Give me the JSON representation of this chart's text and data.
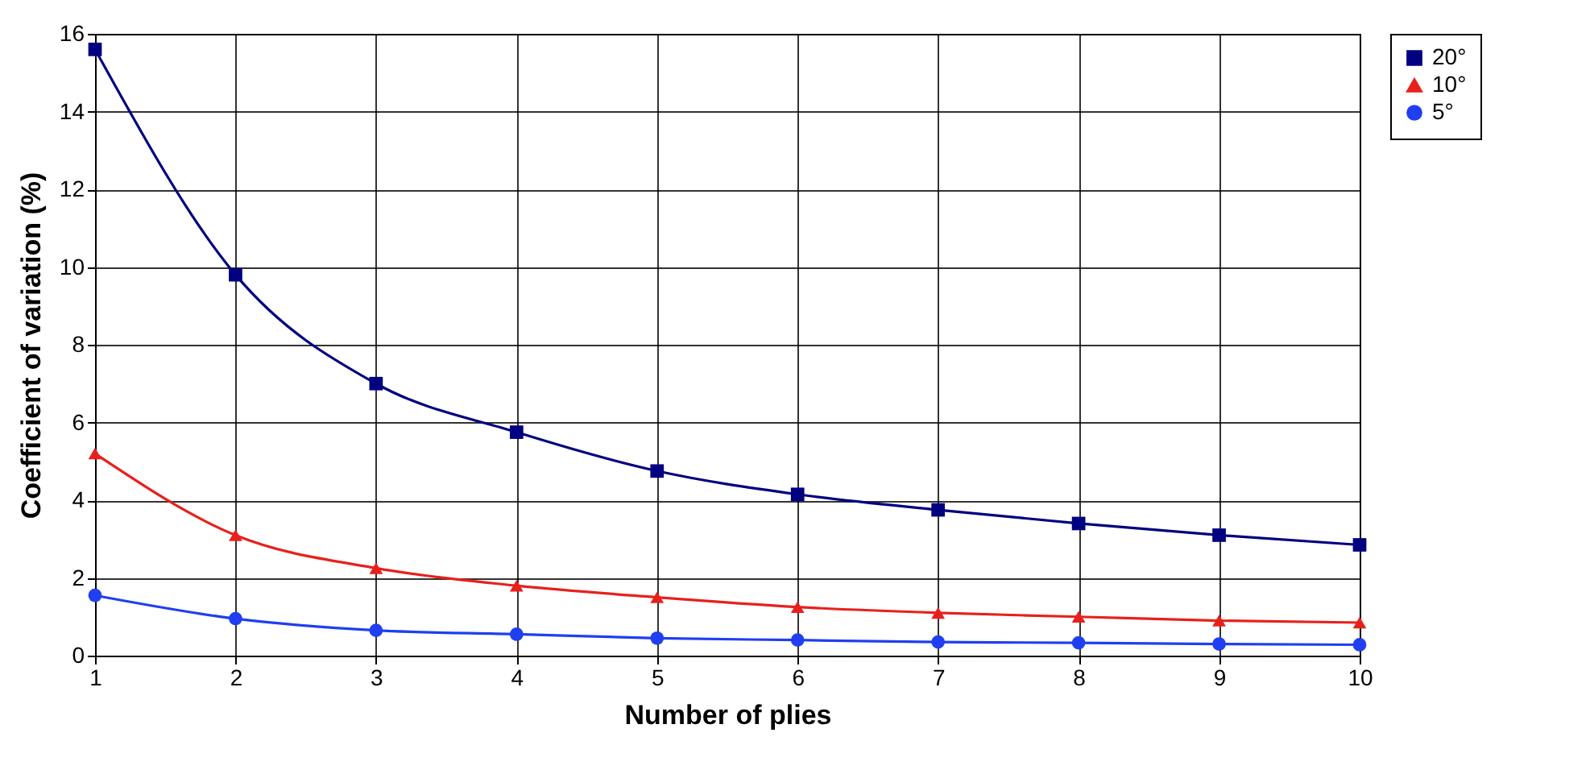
{
  "chart_data": {
    "type": "line",
    "xlabel": "Number of plies",
    "ylabel": "Coefficient of variation (%)",
    "x": [
      1,
      2,
      3,
      4,
      5,
      6,
      7,
      8,
      9,
      10
    ],
    "series": [
      {
        "name": "20°",
        "color": "#000080",
        "marker": "square",
        "values": [
          15.6,
          9.8,
          7.0,
          5.75,
          4.75,
          4.15,
          3.75,
          3.4,
          3.1,
          2.85
        ]
      },
      {
        "name": "10°",
        "color": "#e8201c",
        "marker": "triangle",
        "values": [
          5.2,
          3.1,
          2.25,
          1.8,
          1.5,
          1.25,
          1.1,
          1.0,
          0.9,
          0.85
        ]
      },
      {
        "name": "5°",
        "color": "#1f3ff0",
        "marker": "circle",
        "values": [
          1.55,
          0.95,
          0.65,
          0.55,
          0.45,
          0.4,
          0.35,
          0.33,
          0.3,
          0.28
        ]
      }
    ],
    "xlim": [
      1,
      10
    ],
    "xticks": [
      1,
      2,
      3,
      4,
      5,
      6,
      7,
      8,
      9,
      10
    ],
    "ylim": [
      0,
      16
    ],
    "yticks": [
      0,
      2,
      4,
      6,
      8,
      10,
      12,
      14,
      16
    ],
    "grid": true,
    "legend": "right",
    "line_style": "solid"
  }
}
